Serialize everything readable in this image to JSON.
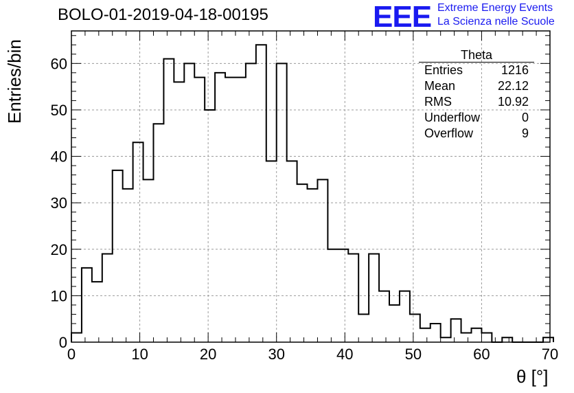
{
  "header": {
    "title": "BOLO-01-2019-04-18-00195",
    "logo_text": "EEE",
    "logo_line1": "Extreme Energy Events",
    "logo_line2": "La Scienza nelle Scuole"
  },
  "stats": {
    "title": "Theta",
    "rows": [
      {
        "label": "Entries",
        "value": "1216"
      },
      {
        "label": "Mean",
        "value": "22.12"
      },
      {
        "label": "RMS",
        "value": "10.92"
      },
      {
        "label": "Underflow",
        "value": "0"
      },
      {
        "label": "Overflow",
        "value": "9"
      }
    ]
  },
  "colors": {
    "accent": "#1a1af0",
    "line": "#000000",
    "grid": "#9a9a9a"
  },
  "chart_data": {
    "type": "histogram",
    "xlabel": "θ [°]",
    "ylabel": "Entries/bin",
    "xlim": [
      0,
      70
    ],
    "ylim": [
      0,
      67
    ],
    "grid": true,
    "x_ticks": [
      0,
      10,
      20,
      30,
      40,
      50,
      60,
      70
    ],
    "y_ticks": [
      0,
      10,
      20,
      30,
      40,
      50,
      60
    ],
    "bin_width": 1.5,
    "bin_edges_start": 0,
    "values": [
      2,
      16,
      13,
      19,
      37,
      33,
      43,
      35,
      47,
      61,
      56,
      60,
      57,
      50,
      58,
      57,
      57,
      60,
      64,
      39,
      60,
      39,
      34,
      33,
      35,
      20,
      20,
      19,
      6,
      19,
      11,
      8,
      11,
      6,
      3,
      4,
      1,
      5,
      2,
      3,
      2,
      0,
      1,
      0,
      0,
      0,
      1
    ]
  }
}
